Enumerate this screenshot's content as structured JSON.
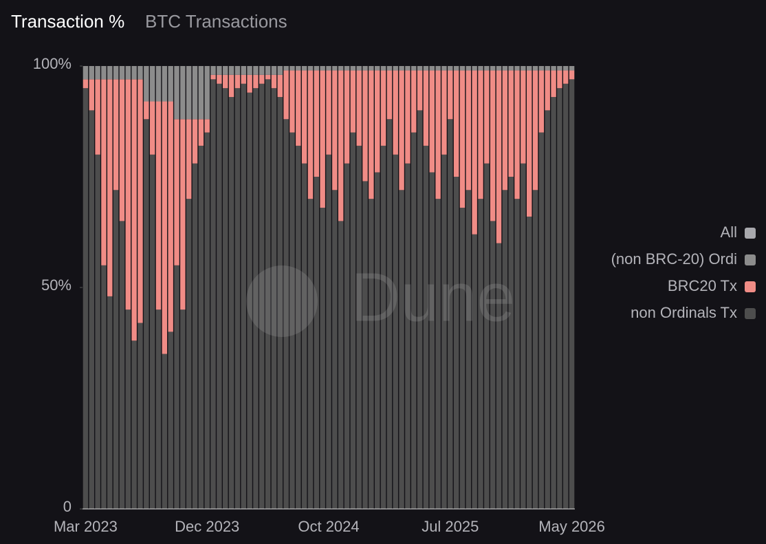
{
  "chart_data": {
    "type": "stacked_bar_percent",
    "title": "Transaction %",
    "subtitle": "BTC Transactions",
    "watermark": "Dune",
    "categories": [
      "Mar 2023",
      null,
      null,
      null,
      null,
      null,
      null,
      null,
      null,
      null,
      null,
      null,
      null,
      null,
      null,
      null,
      null,
      null,
      null,
      null,
      "Dec 2023",
      null,
      null,
      null,
      null,
      null,
      null,
      null,
      null,
      null,
      null,
      null,
      null,
      null,
      null,
      null,
      null,
      null,
      null,
      null,
      "Oct 2024",
      null,
      null,
      null,
      null,
      null,
      null,
      null,
      null,
      null,
      null,
      null,
      null,
      null,
      null,
      null,
      null,
      null,
      null,
      null,
      "Jul 2025",
      null,
      null,
      null,
      null,
      null,
      null,
      null,
      null,
      null,
      null,
      null,
      null,
      null,
      null,
      null,
      null,
      null,
      null,
      null,
      "May 2026"
    ],
    "series": [
      {
        "name": "All",
        "color": "#a8a8ad",
        "values": [
          0,
          0,
          0,
          0,
          0,
          0,
          0,
          0,
          0,
          0,
          0,
          0,
          0,
          0,
          0,
          0,
          0,
          0,
          0,
          0,
          0,
          0,
          0,
          0,
          0,
          0,
          0,
          0,
          0,
          0,
          0,
          0,
          0,
          0,
          0,
          0,
          0,
          0,
          0,
          0,
          0,
          0,
          0,
          0,
          0,
          0,
          0,
          0,
          0,
          0,
          0,
          0,
          0,
          0,
          0,
          0,
          0,
          0,
          0,
          0,
          0,
          0,
          0,
          0,
          0,
          0,
          0,
          0,
          0,
          0,
          0,
          0,
          0,
          0,
          0,
          0,
          0,
          0,
          0,
          0,
          0
        ]
      },
      {
        "name": "(non BRC-20) Ordi",
        "color": "#8c8c8c",
        "values": [
          3,
          3,
          3,
          3,
          3,
          3,
          3,
          3,
          3,
          3,
          8,
          8,
          8,
          8,
          8,
          12,
          12,
          12,
          12,
          12,
          12,
          2,
          2,
          2,
          2,
          2,
          2,
          2,
          2,
          2,
          2,
          2,
          2,
          1,
          1,
          1,
          1,
          1,
          1,
          1,
          1,
          1,
          1,
          1,
          1,
          1,
          1,
          1,
          1,
          1,
          1,
          1,
          1,
          1,
          1,
          1,
          1,
          1,
          1,
          1,
          1,
          1,
          1,
          1,
          1,
          1,
          1,
          1,
          1,
          1,
          1,
          1,
          1,
          1,
          1,
          1,
          1,
          1,
          1,
          1,
          1
        ]
      },
      {
        "name": "BRC20 Tx",
        "color": "#f08c86",
        "values": [
          2,
          7,
          17,
          42,
          49,
          25,
          32,
          52,
          59,
          55,
          4,
          12,
          47,
          57,
          52,
          33,
          43,
          18,
          10,
          6,
          3,
          1,
          2,
          3,
          5,
          3,
          2,
          4,
          3,
          2,
          1,
          3,
          5,
          11,
          14,
          17,
          21,
          29,
          24,
          31,
          19,
          27,
          34,
          21,
          14,
          17,
          25,
          29,
          23,
          17,
          11,
          19,
          27,
          21,
          14,
          9,
          17,
          23,
          29,
          19,
          11,
          24,
          31,
          27,
          37,
          29,
          21,
          34,
          39,
          27,
          24,
          29,
          21,
          33,
          27,
          14,
          9,
          6,
          4,
          3,
          2
        ]
      },
      {
        "name": "non Ordinals Tx",
        "color": "#4d4d4d",
        "values": [
          95,
          90,
          80,
          55,
          48,
          72,
          65,
          45,
          38,
          42,
          88,
          80,
          45,
          35,
          40,
          55,
          45,
          70,
          78,
          82,
          85,
          97,
          96,
          95,
          93,
          95,
          96,
          94,
          95,
          96,
          97,
          95,
          93,
          88,
          85,
          82,
          78,
          70,
          75,
          68,
          80,
          72,
          65,
          78,
          85,
          82,
          74,
          70,
          76,
          82,
          88,
          80,
          72,
          78,
          85,
          90,
          82,
          76,
          70,
          80,
          88,
          75,
          68,
          72,
          62,
          70,
          78,
          65,
          60,
          72,
          75,
          70,
          78,
          66,
          72,
          85,
          90,
          93,
          95,
          96,
          97
        ]
      }
    ],
    "ylim": [
      0,
      100
    ],
    "yticks": [
      0,
      {
        "value": 50,
        "label": "50%"
      },
      {
        "value": 100,
        "label": "100%"
      }
    ],
    "legend": "right"
  }
}
